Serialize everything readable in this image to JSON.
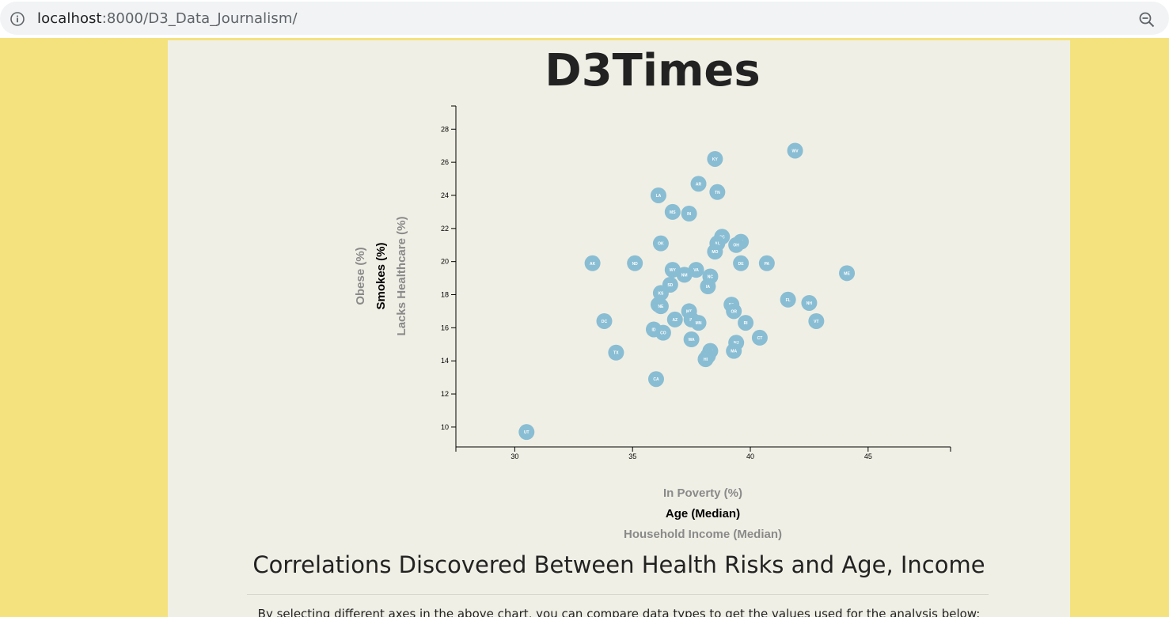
{
  "browser": {
    "url_host": "localhost",
    "url_path": ":8000/D3_Data_Journalism/"
  },
  "page": {
    "title": "D3Times",
    "section_title": "Correlations Discovered Between Health Risks and Age, Income",
    "paragraph": "By selecting different axes in the above chart, you can compare data types to get the values used for the analysis below:"
  },
  "colors": {
    "page_background": "#f4e27f",
    "container_background": "#f0efe5",
    "marker": "#89bdd3"
  },
  "chart_data": {
    "type": "scatter",
    "x_axis_options": [
      {
        "label": "In Poverty (%)",
        "active": false
      },
      {
        "label": "Age (Median)",
        "active": true
      },
      {
        "label": "Household Income (Median)",
        "active": false
      }
    ],
    "y_axis_options": [
      {
        "label": "Obese (%)",
        "active": false
      },
      {
        "label": "Smokes (%)",
        "active": true
      },
      {
        "label": "Lacks Healthcare (%)",
        "active": false
      }
    ],
    "xlim": [
      27.5,
      48.5
    ],
    "ylim": [
      8.8,
      29.4
    ],
    "x_ticks": [
      30,
      35,
      40,
      45
    ],
    "y_ticks": [
      10,
      12,
      14,
      16,
      18,
      20,
      22,
      24,
      26,
      28
    ],
    "grid": false,
    "points": [
      {
        "state": "WV",
        "x": 41.9,
        "y": 26.7
      },
      {
        "state": "KY",
        "x": 38.5,
        "y": 26.2
      },
      {
        "state": "AR",
        "x": 37.8,
        "y": 24.7
      },
      {
        "state": "TN",
        "x": 38.6,
        "y": 24.2
      },
      {
        "state": "LA",
        "x": 36.1,
        "y": 24.0
      },
      {
        "state": "MS",
        "x": 36.7,
        "y": 23.0
      },
      {
        "state": "IN",
        "x": 37.4,
        "y": 22.9
      },
      {
        "state": "SC",
        "x": 38.8,
        "y": 21.5
      },
      {
        "state": "AL",
        "x": 38.6,
        "y": 21.1
      },
      {
        "state": "MI",
        "x": 39.6,
        "y": 21.2
      },
      {
        "state": "OH",
        "x": 39.4,
        "y": 21.0
      },
      {
        "state": "OK",
        "x": 36.2,
        "y": 21.1
      },
      {
        "state": "MO",
        "x": 38.5,
        "y": 20.6
      },
      {
        "state": "ME",
        "x": 44.1,
        "y": 19.3
      },
      {
        "state": "AK",
        "x": 33.3,
        "y": 19.9
      },
      {
        "state": "ND",
        "x": 35.1,
        "y": 19.9
      },
      {
        "state": "PA",
        "x": 40.7,
        "y": 19.9
      },
      {
        "state": "DE",
        "x": 39.6,
        "y": 19.9
      },
      {
        "state": "WY",
        "x": 36.7,
        "y": 19.5
      },
      {
        "state": "NM",
        "x": 37.2,
        "y": 19.2
      },
      {
        "state": "VA",
        "x": 37.7,
        "y": 19.5
      },
      {
        "state": "NC",
        "x": 38.3,
        "y": 19.1
      },
      {
        "state": "IA",
        "x": 38.2,
        "y": 18.5
      },
      {
        "state": "SD",
        "x": 36.6,
        "y": 18.6
      },
      {
        "state": "KS",
        "x": 36.2,
        "y": 18.1
      },
      {
        "state": "FL",
        "x": 41.6,
        "y": 17.7
      },
      {
        "state": "NH",
        "x": 42.5,
        "y": 17.5
      },
      {
        "state": "WI",
        "x": 39.2,
        "y": 17.4
      },
      {
        "state": "NV",
        "x": 36.1,
        "y": 17.4
      },
      {
        "state": "NE",
        "x": 36.2,
        "y": 17.3
      },
      {
        "state": "OR",
        "x": 39.3,
        "y": 17.0
      },
      {
        "state": "MT",
        "x": 37.4,
        "y": 17.0
      },
      {
        "state": "IL",
        "x": 37.5,
        "y": 16.5
      },
      {
        "state": "AZ",
        "x": 36.8,
        "y": 16.5
      },
      {
        "state": "MN",
        "x": 37.8,
        "y": 16.3
      },
      {
        "state": "RI",
        "x": 39.8,
        "y": 16.3
      },
      {
        "state": "VT",
        "x": 42.8,
        "y": 16.4
      },
      {
        "state": "DC",
        "x": 33.8,
        "y": 16.4
      },
      {
        "state": "ID",
        "x": 35.9,
        "y": 15.9
      },
      {
        "state": "CO",
        "x": 36.3,
        "y": 15.7
      },
      {
        "state": "WA",
        "x": 37.5,
        "y": 15.3
      },
      {
        "state": "CT",
        "x": 40.4,
        "y": 15.4
      },
      {
        "state": "NJ",
        "x": 39.4,
        "y": 15.1
      },
      {
        "state": "MA",
        "x": 39.3,
        "y": 14.6
      },
      {
        "state": "MD",
        "x": 38.3,
        "y": 14.6
      },
      {
        "state": "NY",
        "x": 38.2,
        "y": 14.3
      },
      {
        "state": "HI",
        "x": 38.1,
        "y": 14.1
      },
      {
        "state": "TX",
        "x": 34.3,
        "y": 14.5
      },
      {
        "state": "CA",
        "x": 36.0,
        "y": 12.9
      },
      {
        "state": "UT",
        "x": 30.5,
        "y": 9.7
      }
    ]
  }
}
